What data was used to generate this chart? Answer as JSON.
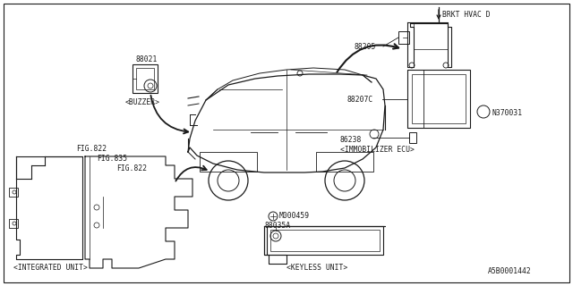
{
  "bg_color": "#ffffff",
  "line_color": "#1a1a1a",
  "diagram_id": "A5B0001442",
  "figsize": [
    6.4,
    3.2
  ],
  "dpi": 100,
  "labels": {
    "brkt_hvac": "BRKT HVAC D",
    "p88205": "88205",
    "p88207c": "88207C",
    "p86238": "86238",
    "n370031": "N370031",
    "immob_ecu": "<IMMOBILIZER ECU>",
    "p88021": "88021",
    "buzzer": "<BUZZER>",
    "fig822a": "FIG.822",
    "fig835": "FIG.835",
    "fig822b": "FIG.822",
    "integrated": "<INTEGRATED UNIT>",
    "m000459": "M000459",
    "p88035a": "88035A",
    "keyless": "<KEYLESS UNIT>"
  }
}
